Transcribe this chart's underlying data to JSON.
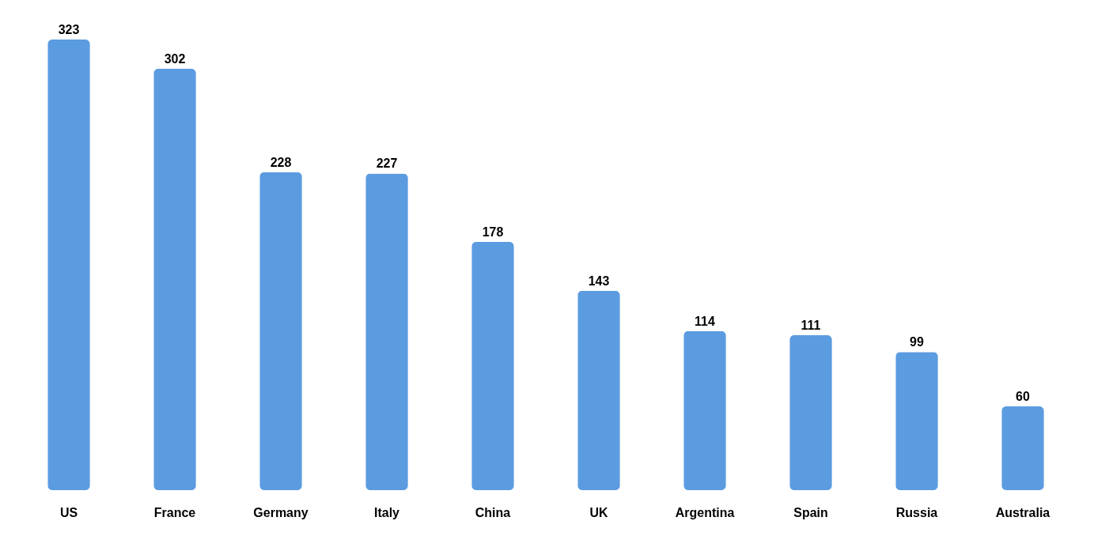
{
  "chart_data": {
    "type": "bar",
    "categories": [
      "US",
      "France",
      "Germany",
      "Italy",
      "China",
      "UK",
      "Argentina",
      "Spain",
      "Russia",
      "Australia"
    ],
    "values": [
      323,
      302,
      228,
      227,
      178,
      143,
      114,
      111,
      99,
      60
    ],
    "color": "#5b9be0",
    "data_labels": true,
    "grid": false
  }
}
